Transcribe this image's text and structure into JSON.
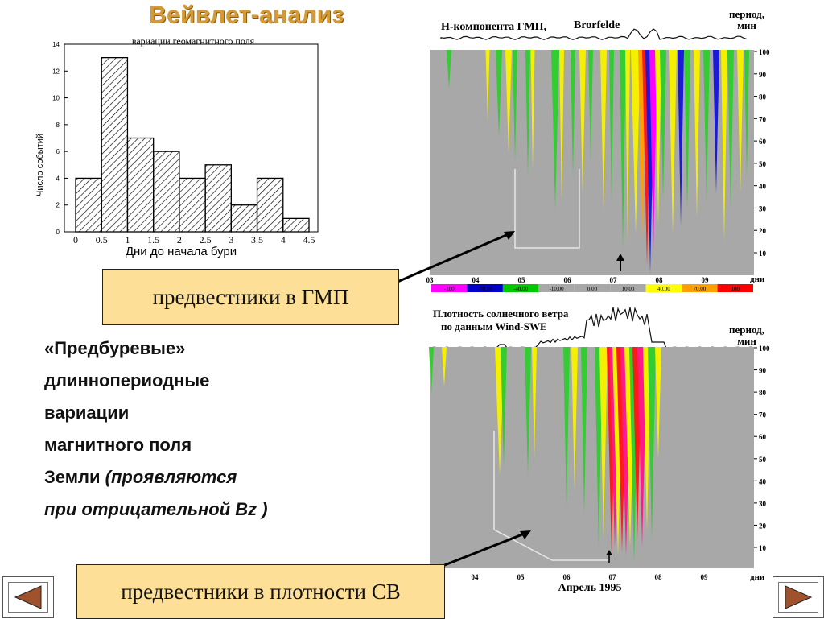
{
  "slide": {
    "title": "Вейвлет-анализ",
    "callouts": {
      "gmp": "предвестники в ГМП",
      "sw": "предвестники в плотности СВ"
    },
    "body_lines": [
      {
        "normal": "«Предбуревые»",
        "italic": ""
      },
      {
        "normal": "длиннопериодные",
        "italic": ""
      },
      {
        "normal": "вариации",
        "italic": ""
      },
      {
        "normal": "магнитного поля",
        "italic": ""
      },
      {
        "normal": "Земли ",
        "italic": "(проявляются"
      },
      {
        "normal": "",
        "italic": "при отрицательной Bz )"
      }
    ],
    "nav": {
      "prev_icon": "triangle-left-icon",
      "next_icon": "triangle-right-icon",
      "arrow_color": "#a0522d"
    }
  },
  "chart_data": [
    {
      "type": "bar",
      "title": "вариации геомагнитного поля",
      "xlabel": "Дни до начала бури",
      "ylabel": "Число событий",
      "bin_edges": [
        0,
        0.5,
        1,
        1.5,
        2,
        2.5,
        3,
        3.5,
        4,
        4.5
      ],
      "xticks": [
        "0",
        "0.5",
        "1",
        "1.5",
        "2",
        "2.5",
        "3",
        "3.5",
        "4",
        "4.5"
      ],
      "values": [
        4,
        13,
        7,
        6,
        4,
        5,
        2,
        4,
        1
      ],
      "ylim": [
        0,
        14
      ],
      "yticks": [
        0,
        2,
        4,
        6,
        8,
        10,
        12,
        14
      ],
      "fill": "diagonal hatch"
    },
    {
      "type": "heatmap",
      "trace_label": "Н-компонента ГМП,",
      "station": "Brorfelde",
      "ylabel": "период, мин",
      "yticks": [
        10,
        20,
        30,
        40,
        50,
        60,
        70,
        80,
        90,
        100
      ],
      "xticks": [
        "03",
        "04",
        "05",
        "06",
        "07",
        "08",
        "09"
      ],
      "xunit": "дни",
      "colorbar": [
        {
          "label": "-100",
          "color": "#ff00ff"
        },
        {
          "label": "-70.00",
          "color": "#0000c8"
        },
        {
          "label": "-40.00",
          "color": "#00c800"
        },
        {
          "label": "-10.00",
          "color": "#a8a8a8"
        },
        {
          "label": "0.00",
          "color": "#a8a8a8"
        },
        {
          "label": "10.00",
          "color": "#a8a8a8"
        },
        {
          "label": "40.00",
          "color": "#ffff00"
        },
        {
          "label": "70.00",
          "color": "#ffa000"
        },
        {
          "label": "100",
          "color": "#ff0000"
        }
      ]
    },
    {
      "type": "heatmap",
      "trace_label_lines": [
        "Плотность солнечного ветра",
        "по данным Wind-SWE"
      ],
      "ylabel": "период, мин",
      "yticks": [
        10,
        20,
        30,
        40,
        50,
        60,
        70,
        80,
        90,
        100
      ],
      "xticks": [
        "04",
        "05",
        "06",
        "07",
        "08",
        "09"
      ],
      "xunit": "дни",
      "date_label": "Апрель 1995"
    }
  ]
}
